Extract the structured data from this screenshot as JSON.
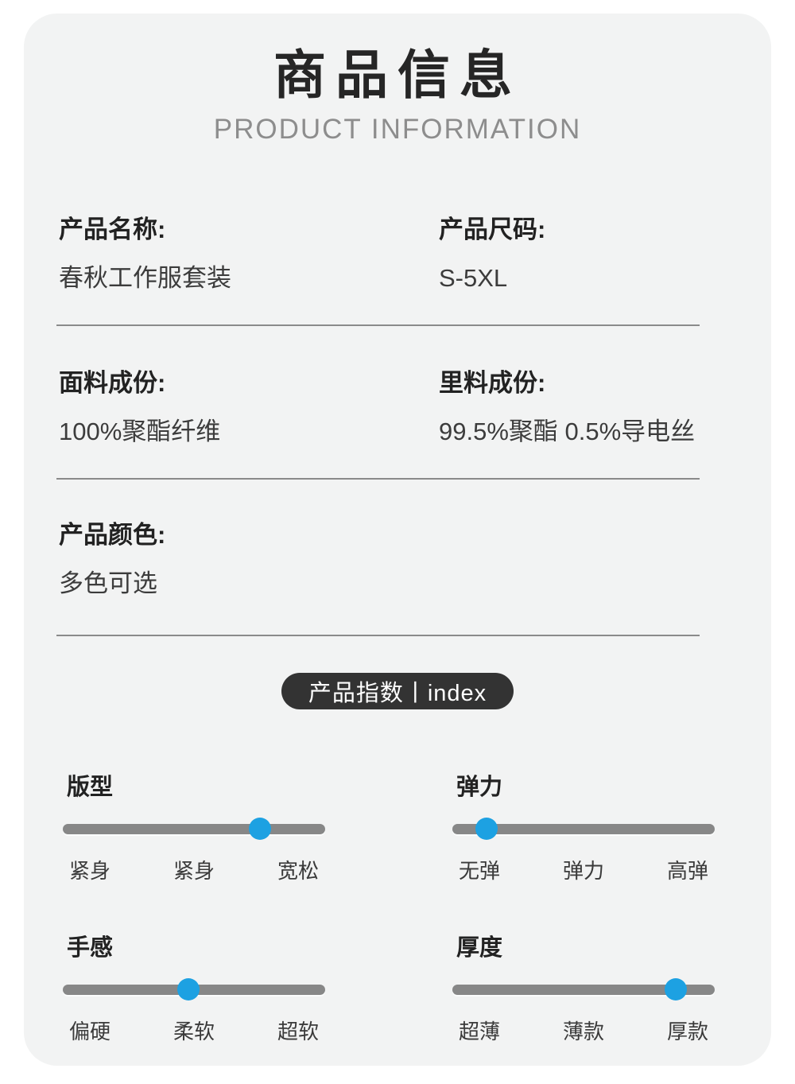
{
  "header": {
    "title": "商品信息",
    "subtitle": "PRODUCT INFORMATION"
  },
  "info_sections": [
    {
      "items": [
        {
          "label": "产品名称:",
          "value": "春秋工作服套装"
        },
        {
          "label": "产品尺码:",
          "value": "S-5XL"
        }
      ]
    },
    {
      "items": [
        {
          "label": "面料成份:",
          "value": "100%聚酯纤维"
        },
        {
          "label": "里料成份:",
          "value": "99.5%聚酯 0.5%导电丝"
        }
      ]
    },
    {
      "items": [
        {
          "label": "产品颜色:",
          "value": "多色可选"
        }
      ]
    }
  ],
  "index_badge": {
    "label": "产品指数丨index"
  },
  "sliders": [
    {
      "title": "版型",
      "percent": 75,
      "ticks": [
        "紧身",
        "紧身",
        "宽松"
      ]
    },
    {
      "title": "弹力",
      "percent": 13,
      "ticks": [
        "无弹",
        "弹力",
        "高弹"
      ]
    },
    {
      "title": "手感",
      "percent": 48,
      "ticks": [
        "偏硬",
        "柔软",
        "超软"
      ]
    },
    {
      "title": "厚度",
      "percent": 85,
      "ticks": [
        "超薄",
        "薄款",
        "厚款"
      ]
    }
  ],
  "colors": {
    "page_background": "#ffffff",
    "card_background": "#f2f3f3",
    "title_text": "#262626",
    "subtitle_text": "#8d8d8d",
    "body_text": "#3c3c3c",
    "divider": "#8a8a8a",
    "badge_background": "#333333",
    "badge_text": "#ffffff",
    "slider_track": "#878787",
    "slider_dot": "#1da1e2"
  }
}
